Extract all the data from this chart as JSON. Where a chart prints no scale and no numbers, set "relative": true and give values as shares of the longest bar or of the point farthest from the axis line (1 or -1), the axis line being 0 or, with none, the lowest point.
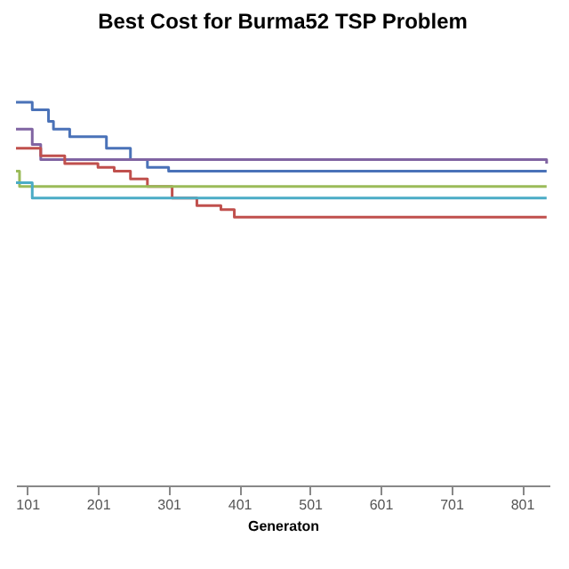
{
  "chart_data": {
    "type": "step",
    "title": "Best Cost for Burma52 TSP Problem",
    "xlabel": "Generaton",
    "relative": true,
    "xlim": [
      85,
      840
    ],
    "xticks": [
      101,
      201,
      301,
      401,
      501,
      601,
      701,
      801
    ],
    "series": [
      {
        "color": "#4a72b8",
        "x": [
          85,
          108,
          131,
          138,
          161,
          213,
          247,
          271,
          301,
          836
        ],
        "values": [
          1.0,
          0.98,
          0.95,
          0.93,
          0.91,
          0.88,
          0.85,
          0.83,
          0.82,
          0.82
        ]
      },
      {
        "color": "#8064a2",
        "x": [
          85,
          108,
          120,
          836
        ],
        "values": [
          0.93,
          0.89,
          0.85,
          0.84
        ]
      },
      {
        "color": "#c0504d",
        "x": [
          85,
          120,
          154,
          201,
          224,
          247,
          271,
          306,
          341,
          375,
          394,
          836
        ],
        "values": [
          0.88,
          0.86,
          0.84,
          0.83,
          0.82,
          0.8,
          0.78,
          0.75,
          0.73,
          0.72,
          0.7,
          0.7
        ]
      },
      {
        "color": "#9bbb59",
        "x": [
          85,
          90,
          836
        ],
        "values": [
          0.82,
          0.78,
          0.78
        ]
      },
      {
        "color": "#4bacc6",
        "x": [
          85,
          108,
          836
        ],
        "values": [
          0.79,
          0.75,
          0.75
        ]
      }
    ]
  }
}
